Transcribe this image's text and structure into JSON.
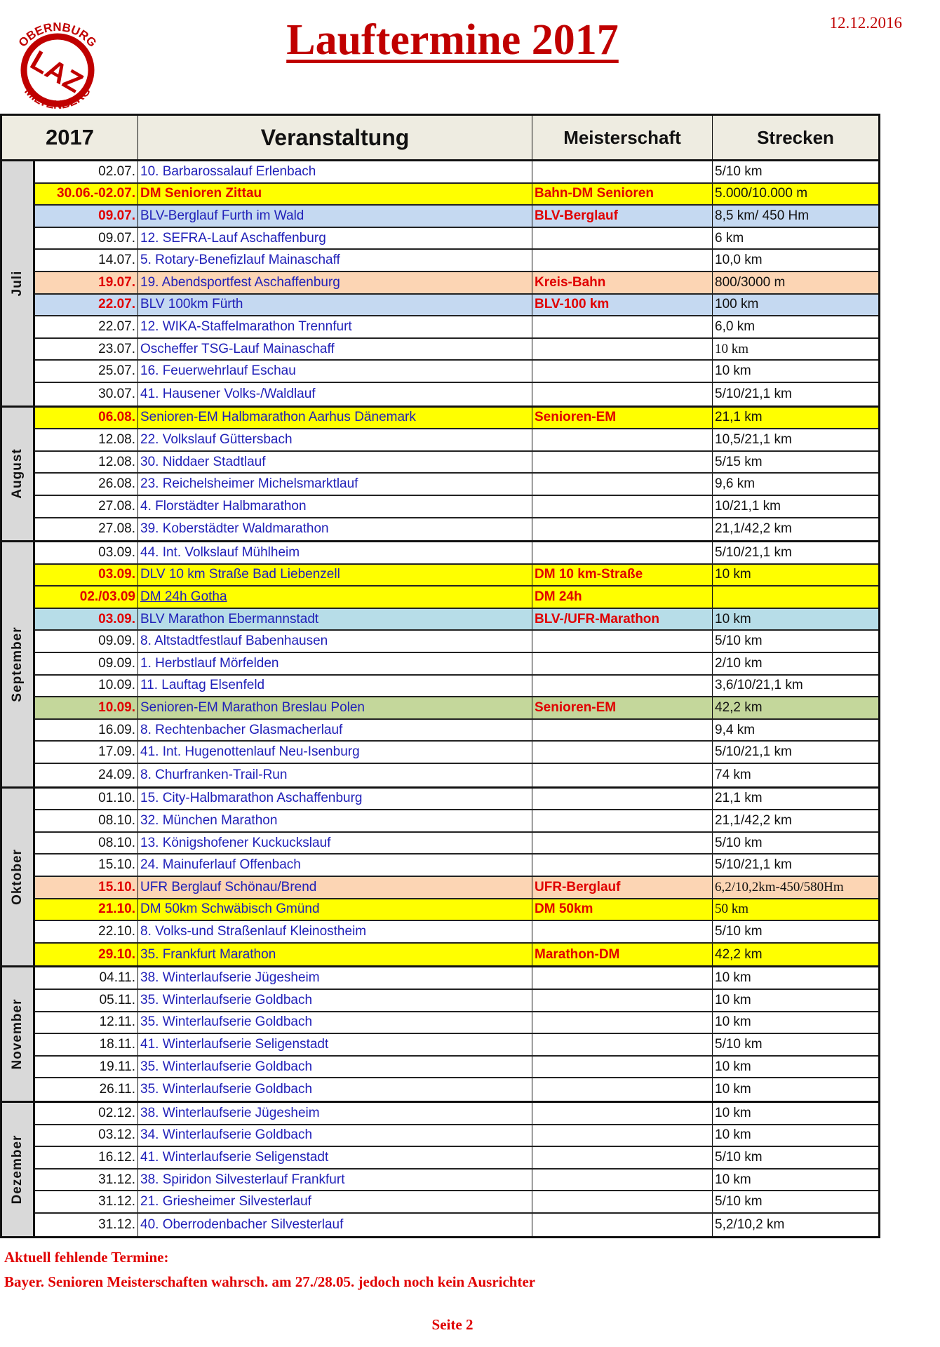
{
  "header": {
    "title": "Lauftermine 2017",
    "date": "12.12.2016",
    "logo_text": "OBERNBURG LAZ MILTENBERG"
  },
  "table": {
    "columns": [
      "2017",
      "Veranstaltung",
      "Meisterschaft",
      "Strecken"
    ],
    "colors": {
      "yellow": "#ffff00",
      "blue": "#c5d9f1",
      "peach": "#fcd5b4",
      "green": "#c4d79b",
      "teal": "#b7dde8"
    },
    "groups": [
      {
        "month": "Juli",
        "rows": [
          {
            "date": "02.07.",
            "event": "10. Barbarossalauf Erlenbach",
            "meister": "",
            "strecken": "5/10 km"
          },
          {
            "date": "30.06.-02.07.",
            "event": "DM Senioren Zittau",
            "meister": "Bahn-DM Senioren",
            "strecken": "5.000/10.000 m",
            "bg": "#ffff00",
            "special": true,
            "red_event": true
          },
          {
            "date": "09.07.",
            "event": "BLV-Berglauf Furth im Wald",
            "meister": "BLV-Berglauf",
            "strecken": "8,5 km/ 450 Hm",
            "bg": "#c5d9f1",
            "special": true
          },
          {
            "date": "09.07.",
            "event": "12. SEFRA-Lauf Aschaffenburg",
            "meister": "",
            "strecken": "6 km"
          },
          {
            "date": "14.07.",
            "event": "5. Rotary-Benefizlauf Mainaschaff",
            "meister": "",
            "strecken": "10,0 km"
          },
          {
            "date": "19.07.",
            "event": "19. Abendsportfest Aschaffenburg",
            "meister": "Kreis-Bahn",
            "strecken": "800/3000 m",
            "bg": "#fcd5b4",
            "special": true
          },
          {
            "date": "22.07.",
            "event": "BLV 100km Fürth",
            "meister": "BLV-100 km",
            "strecken": "100 km",
            "bg": "#c5d9f1",
            "special": true
          },
          {
            "date": "22.07.",
            "event": "12. WIKA-Staffelmarathon Trennfurt",
            "meister": "",
            "strecken": "6,0 km"
          },
          {
            "date": "23.07.",
            "event": "Oscheffer TSG-Lauf Mainaschaff",
            "meister": "",
            "strecken": "10 km",
            "serif": true
          },
          {
            "date": "25.07.",
            "event": "16. Feuerwehrlauf Eschau",
            "meister": "",
            "strecken": "10 km"
          },
          {
            "date": "30.07.",
            "event": "41. Hausener Volks-/Waldlauf",
            "meister": "",
            "strecken": "5/10/21,1 km"
          }
        ]
      },
      {
        "month": "August",
        "rows": [
          {
            "date": "06.08.",
            "event": "Senioren-EM Halbmarathon Aarhus Dänemark",
            "meister": "Senioren-EM",
            "strecken": "21,1 km",
            "bg": "#ffff00",
            "special": true
          },
          {
            "date": "12.08.",
            "event": "22. Volkslauf Güttersbach",
            "meister": "",
            "strecken": "10,5/21,1 km"
          },
          {
            "date": "12.08.",
            "event": "30. Niddaer Stadtlauf",
            "meister": "",
            "strecken": "5/15 km"
          },
          {
            "date": "26.08.",
            "event": "23. Reichelsheimer Michelsmarktlauf",
            "meister": "",
            "strecken": "9,6 km"
          },
          {
            "date": "27.08.",
            "event": "4. Florstädter Halbmarathon",
            "meister": "",
            "strecken": "10/21,1 km"
          },
          {
            "date": "27.08.",
            "event": "39. Koberstädter Waldmarathon",
            "meister": "",
            "strecken": "21,1/42,2 km"
          }
        ]
      },
      {
        "month": "September",
        "rows": [
          {
            "date": "03.09.",
            "event": "44. Int. Volkslauf Mühlheim",
            "meister": "",
            "strecken": "5/10/21,1 km"
          },
          {
            "date": "03.09.",
            "event": "DLV 10 km Straße Bad Liebenzell",
            "meister": "DM 10 km-Straße",
            "strecken": "10 km",
            "bg": "#ffff00",
            "special": true
          },
          {
            "date": "02./03.09",
            "event": "DM 24h Gotha",
            "meister": "DM 24h",
            "strecken": "",
            "bg": "#ffff00",
            "special": true,
            "link": true
          },
          {
            "date": "03.09.",
            "event": "BLV Marathon Ebermannstadt",
            "meister": "BLV-/UFR-Marathon",
            "strecken": "10 km",
            "bg": "#b7dde8",
            "special": true
          },
          {
            "date": "09.09.",
            "event": "8. Altstadtfestlauf Babenhausen",
            "meister": "",
            "strecken": "5/10 km"
          },
          {
            "date": "09.09.",
            "event": "1. Herbstlauf Mörfelden",
            "meister": "",
            "strecken": "2/10 km"
          },
          {
            "date": "10.09.",
            "event": "11. Lauftag Elsenfeld",
            "meister": "",
            "strecken": "3,6/10/21,1 km"
          },
          {
            "date": "10.09.",
            "event": "Senioren-EM Marathon Breslau Polen",
            "meister": "Senioren-EM",
            "strecken": "42,2 km",
            "bg": "#c4d79b",
            "special": true
          },
          {
            "date": "16.09.",
            "event": "8. Rechtenbacher Glasmacherlauf",
            "meister": "",
            "strecken": "9,4 km"
          },
          {
            "date": "17.09.",
            "event": "41. Int. Hugenottenlauf Neu-Isenburg",
            "meister": "",
            "strecken": "5/10/21,1 km"
          },
          {
            "date": "24.09.",
            "event": "8. Churfranken-Trail-Run",
            "meister": "",
            "strecken": "74 km"
          }
        ]
      },
      {
        "month": "Oktober",
        "rows": [
          {
            "date": "01.10.",
            "event": "15. City-Halbmarathon Aschaffenburg",
            "meister": "",
            "strecken": "21,1 km"
          },
          {
            "date": "08.10.",
            "event": "32. München Marathon",
            "meister": "",
            "strecken": "21,1/42,2 km"
          },
          {
            "date": "08.10.",
            "event": "13. Königshofener Kuckuckslauf",
            "meister": "",
            "strecken": "5/10 km"
          },
          {
            "date": "15.10.",
            "event": "24. Mainuferlauf Offenbach",
            "meister": "",
            "strecken": "5/10/21,1 km"
          },
          {
            "date": "15.10.",
            "event": "UFR Berglauf Schönau/Brend",
            "meister": "UFR-Berglauf",
            "strecken": "6,2/10,2km-450/580Hm",
            "bg": "#fcd5b4",
            "special": true,
            "serif": true
          },
          {
            "date": "21.10.",
            "event": "DM 50km Schwäbisch Gmünd",
            "meister": "DM 50km",
            "strecken": "50 km",
            "bg": "#ffff00",
            "special": true,
            "serif": true
          },
          {
            "date": "22.10.",
            "event": "8. Volks-und Straßenlauf Kleinostheim",
            "meister": "",
            "strecken": "5/10 km"
          },
          {
            "date": "29.10.",
            "event": "35. Frankfurt Marathon",
            "meister": "Marathon-DM",
            "strecken": "42,2 km",
            "bg": "#ffff00",
            "special": true
          }
        ]
      },
      {
        "month": "November",
        "rows": [
          {
            "date": "04.11.",
            "event": "38. Winterlaufserie Jügesheim",
            "meister": "",
            "strecken": "10 km"
          },
          {
            "date": "05.11.",
            "event": "35. Winterlaufserie Goldbach",
            "meister": "",
            "strecken": "10 km"
          },
          {
            "date": "12.11.",
            "event": "35. Winterlaufserie Goldbach",
            "meister": "",
            "strecken": "10 km"
          },
          {
            "date": "18.11.",
            "event": "41. Winterlaufserie Seligenstadt",
            "meister": "",
            "strecken": "5/10 km"
          },
          {
            "date": "19.11.",
            "event": "35. Winterlaufserie Goldbach",
            "meister": "",
            "strecken": "10 km"
          },
          {
            "date": "26.11.",
            "event": "35. Winterlaufserie Goldbach",
            "meister": "",
            "strecken": "10 km"
          }
        ]
      },
      {
        "month": "Dezember",
        "rows": [
          {
            "date": "02.12.",
            "event": "38. Winterlaufserie Jügesheim",
            "meister": "",
            "strecken": "10 km"
          },
          {
            "date": "03.12.",
            "event": "34. Winterlaufserie Goldbach",
            "meister": "",
            "strecken": "10 km"
          },
          {
            "date": "16.12.",
            "event": "41. Winterlaufserie Seligenstadt",
            "meister": "",
            "strecken": "5/10 km"
          },
          {
            "date": "31.12.",
            "event": "38. Spiridon Silvesterlauf Frankfurt",
            "meister": "",
            "strecken": "10 km"
          },
          {
            "date": "31.12.",
            "event": "21. Griesheimer Silvesterlauf",
            "meister": "",
            "strecken": "5/10 km"
          },
          {
            "date": "31.12.",
            "event": "40. Oberrodenbacher Silvesterlauf",
            "meister": "",
            "strecken": "5,2/10,2 km"
          }
        ]
      }
    ]
  },
  "footer": {
    "missing_heading": "Aktuell fehlende Termine:",
    "missing_text": "Bayer. Senioren Meisterschaften wahrsch. am 27./28.05. jedoch noch kein Ausrichter",
    "page": "Seite 2"
  }
}
